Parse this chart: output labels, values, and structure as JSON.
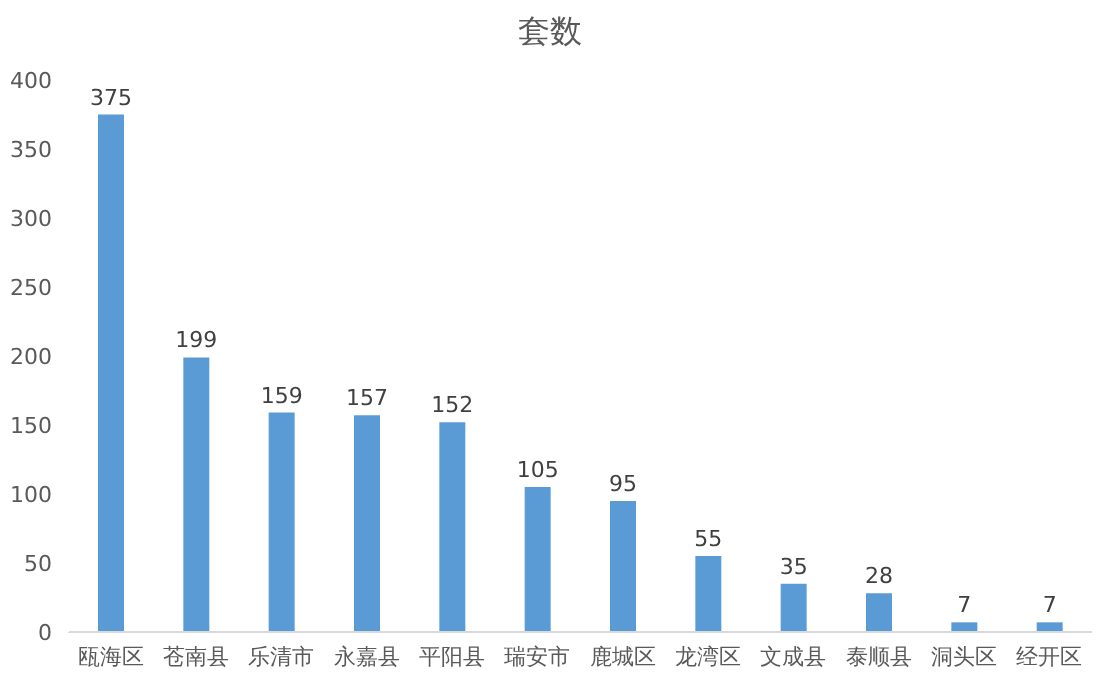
{
  "chart_data": {
    "type": "bar",
    "title": "套数",
    "categories": [
      "瓯海区",
      "苍南县",
      "乐清市",
      "永嘉县",
      "平阳县",
      "瑞安市",
      "鹿城区",
      "龙湾区",
      "文成县",
      "泰顺县",
      "洞头区",
      "经开区"
    ],
    "values": [
      375,
      199,
      159,
      157,
      152,
      105,
      95,
      55,
      35,
      28,
      7,
      7
    ],
    "color": "#5b9bd5",
    "ylim": [
      0,
      400
    ],
    "yticks": [
      0,
      50,
      100,
      150,
      200,
      250,
      300,
      350,
      400
    ],
    "grid": false,
    "data_labels": true,
    "legend": false
  }
}
